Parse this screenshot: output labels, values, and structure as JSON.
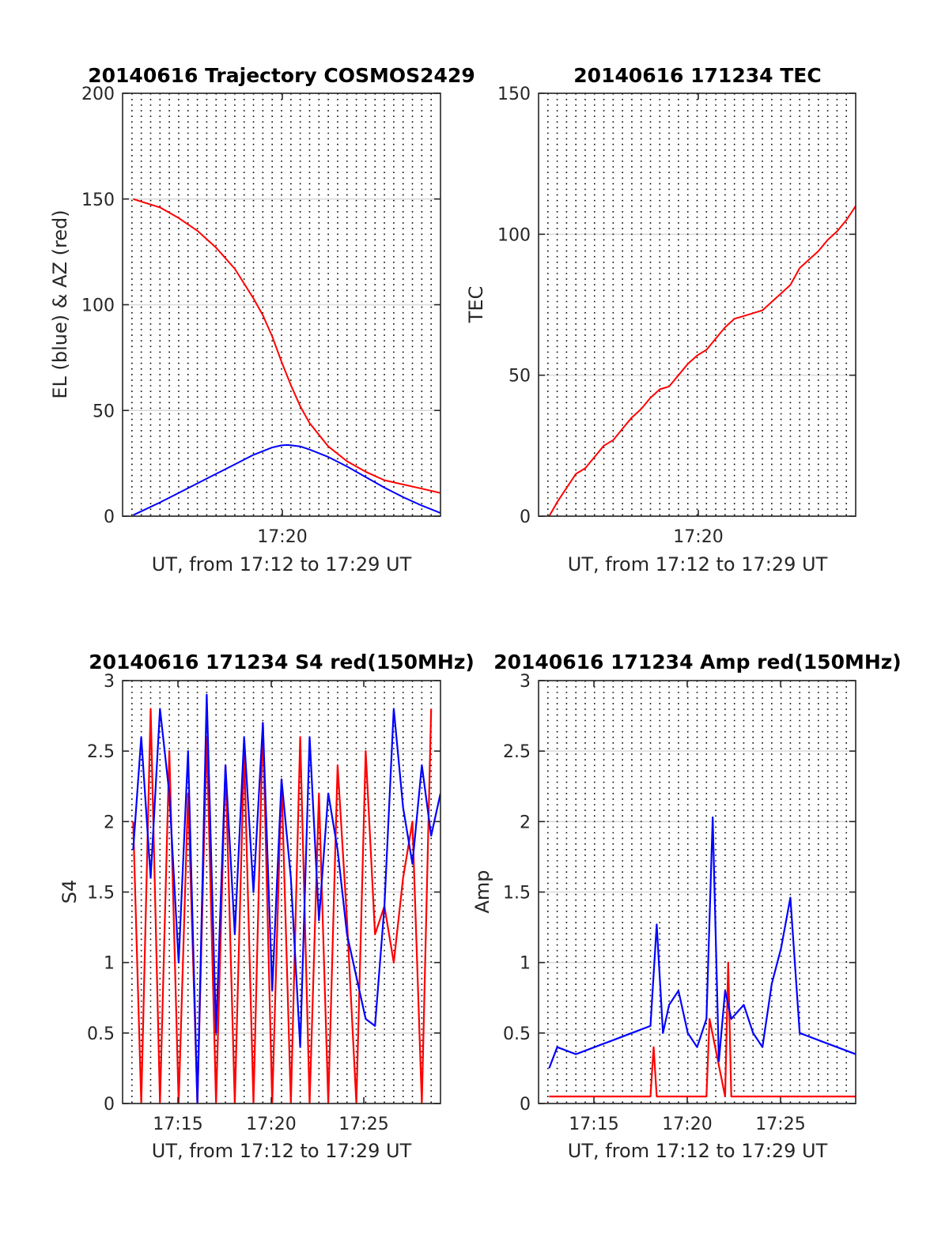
{
  "colors": {
    "red": "#ff0000",
    "blue": "#0000ff",
    "grid_dotted": "#000000",
    "grid_solid": "#d9d9d9",
    "axis": "#262626"
  },
  "chart_data": [
    {
      "id": "trajectory",
      "type": "line",
      "title": "20140616 Trajectory COSMOS2429",
      "xlabel": "UT, from 17:12 to 17:29 UT",
      "ylabel": "EL (blue) & AZ (red)",
      "xlim": [
        "17:12:00",
        "17:29:00"
      ],
      "ylim": [
        0,
        200
      ],
      "yticks": [
        "0",
        "50",
        "100",
        "150",
        "200"
      ],
      "xticks": [
        "17:20"
      ],
      "grid": "x dotted every 30 s, y solid",
      "series": [
        {
          "color": "#ff0000",
          "x": [
            "17:12:34",
            "17:14:00",
            "17:15:00",
            "17:16:00",
            "17:17:00",
            "17:18:00",
            "17:19:00",
            "17:19:30",
            "17:20:00",
            "17:20:30",
            "17:21:00",
            "17:21:30",
            "17:22:00",
            "17:23:00",
            "17:24:00",
            "17:25:00",
            "17:26:00",
            "17:27:00",
            "17:28:00",
            "17:29:00"
          ],
          "values": [
            150,
            146,
            141,
            135,
            127,
            117,
            103,
            95,
            85,
            73,
            62,
            52,
            44,
            33,
            26,
            21,
            17,
            15,
            13,
            11
          ]
        },
        {
          "color": "#0000ff",
          "x": [
            "17:12:34",
            "17:14:00",
            "17:15:00",
            "17:16:00",
            "17:17:00",
            "17:18:00",
            "17:19:00",
            "17:20:00",
            "17:20:30",
            "17:20:50",
            "17:21:30",
            "17:22:00",
            "17:23:00",
            "17:24:00",
            "17:25:00",
            "17:26:00",
            "17:27:00",
            "17:28:00",
            "17:29:00"
          ],
          "values": [
            0.5,
            6.5,
            11,
            15.5,
            20,
            24.5,
            29,
            32.5,
            33.5,
            33.7,
            33,
            31.5,
            28,
            23.5,
            18.5,
            13.5,
            9,
            5,
            1.5
          ]
        }
      ]
    },
    {
      "id": "tec",
      "type": "line",
      "title": "20140616 171234 TEC",
      "xlabel": "UT, from 17:12 to 17:29 UT",
      "ylabel": "TEC",
      "xlim": [
        "17:12:00",
        "17:29:00"
      ],
      "ylim": [
        0,
        150
      ],
      "yticks": [
        "0",
        "50",
        "100",
        "150"
      ],
      "xticks": [
        "17:20"
      ],
      "grid": "x dotted every 30 s, y solid",
      "series": [
        {
          "color": "#ff0000",
          "x": [
            "17:12:34",
            "17:13:00",
            "17:13:30",
            "17:14:00",
            "17:14:30",
            "17:15:00",
            "17:15:30",
            "17:16:00",
            "17:16:30",
            "17:17:00",
            "17:17:30",
            "17:18:00",
            "17:18:30",
            "17:19:00",
            "17:19:30",
            "17:20:00",
            "17:20:30",
            "17:21:00",
            "17:21:30",
            "17:22:00",
            "17:22:30",
            "17:23:00",
            "17:23:30",
            "17:24:00",
            "17:24:30",
            "17:25:00",
            "17:25:30",
            "17:26:00",
            "17:26:30",
            "17:27:00",
            "17:27:30",
            "17:28:00",
            "17:28:30",
            "17:29:00"
          ],
          "values": [
            0,
            5,
            10,
            15,
            17,
            21,
            25,
            27,
            31,
            35,
            38,
            42,
            45,
            46,
            50,
            54,
            57,
            59,
            63,
            67,
            70,
            71,
            72,
            73,
            76,
            79,
            82,
            88,
            91,
            94,
            98,
            101,
            105,
            110
          ]
        }
      ]
    },
    {
      "id": "s4",
      "type": "line",
      "title": "20140616 171234 S4 red(150MHz)",
      "xlabel": "UT, from 17:12 to 17:29 UT",
      "ylabel": "S4",
      "xlim": [
        "17:12:00",
        "17:29:00"
      ],
      "ylim": [
        0,
        3
      ],
      "yticks": [
        "0",
        "0.5",
        "1",
        "1.5",
        "2",
        "2.5",
        "3"
      ],
      "xticks": [
        "17:15",
        "17:20",
        "17:25"
      ],
      "grid": "x dotted every 30 s, y solid",
      "series": [
        {
          "color": "#ff0000",
          "x": [
            "17:12:34",
            "17:13:00",
            "17:13:30",
            "17:14:00",
            "17:14:30",
            "17:15:00",
            "17:15:30",
            "17:16:00",
            "17:16:30",
            "17:17:00",
            "17:17:30",
            "17:18:00",
            "17:18:30",
            "17:19:00",
            "17:19:30",
            "17:20:00",
            "17:20:30",
            "17:21:00",
            "17:21:30",
            "17:22:00",
            "17:22:30",
            "17:23:00",
            "17:23:30",
            "17:24:00",
            "17:24:30",
            "17:25:00",
            "17:25:30",
            "17:26:00",
            "17:26:30",
            "17:27:00",
            "17:27:30",
            "17:28:00",
            "17:28:30"
          ],
          "values": [
            2.0,
            0.0,
            2.8,
            0.0,
            2.5,
            0.0,
            2.2,
            0.0,
            2.6,
            0.0,
            2.4,
            0.0,
            2.5,
            0.0,
            2.7,
            0.0,
            2.3,
            0.0,
            2.6,
            0.0,
            2.2,
            0.0,
            2.4,
            1.3,
            0.0,
            2.5,
            1.2,
            1.4,
            1.0,
            1.6,
            2.0,
            0.0,
            2.8
          ]
        },
        {
          "color": "#0000ff",
          "x": [
            "17:12:34",
            "17:13:00",
            "17:13:30",
            "17:14:00",
            "17:14:30",
            "17:15:00",
            "17:15:30",
            "17:16:00",
            "17:16:30",
            "17:17:00",
            "17:17:30",
            "17:18:00",
            "17:18:30",
            "17:19:00",
            "17:19:30",
            "17:20:00",
            "17:20:30",
            "17:21:00",
            "17:21:30",
            "17:22:00",
            "17:22:30",
            "17:23:00",
            "17:23:30",
            "17:24:00",
            "17:24:30",
            "17:25:00",
            "17:25:30",
            "17:26:00",
            "17:26:30",
            "17:27:00",
            "17:27:30",
            "17:28:00",
            "17:28:30",
            "17:29:00"
          ],
          "values": [
            1.8,
            2.6,
            1.6,
            2.8,
            2.2,
            1.0,
            2.5,
            0.0,
            2.9,
            0.5,
            2.4,
            1.2,
            2.6,
            1.5,
            2.7,
            0.8,
            2.3,
            1.6,
            0.4,
            2.6,
            1.3,
            2.2,
            1.8,
            1.2,
            0.9,
            0.6,
            0.55,
            1.4,
            2.8,
            2.1,
            1.7,
            2.4,
            1.9,
            2.2
          ]
        }
      ]
    },
    {
      "id": "amp",
      "type": "line",
      "title": "20140616 171234 Amp red(150MHz)",
      "xlabel": "UT, from 17:12 to 17:29 UT",
      "ylabel": "Amp",
      "xlim": [
        "17:12:00",
        "17:29:00"
      ],
      "ylim": [
        0,
        3
      ],
      "yticks": [
        "0",
        "0.5",
        "1",
        "1.5",
        "2",
        "2.5",
        "3"
      ],
      "xticks": [
        "17:15",
        "17:20",
        "17:25"
      ],
      "grid": "x dotted every 30 s, y solid",
      "series": [
        {
          "color": "#ff0000",
          "x": [
            "17:12:34",
            "17:18:00",
            "17:18:10",
            "17:18:20",
            "17:21:00",
            "17:21:10",
            "17:22:00",
            "17:22:10",
            "17:22:20",
            "17:29:00"
          ],
          "values": [
            0.05,
            0.05,
            0.4,
            0.05,
            0.05,
            0.6,
            0.05,
            1.0,
            0.05,
            0.05
          ]
        },
        {
          "color": "#0000ff",
          "x": [
            "17:12:34",
            "17:13:00",
            "17:14:00",
            "17:15:00",
            "17:16:00",
            "17:17:00",
            "17:18:00",
            "17:18:20",
            "17:18:40",
            "17:19:00",
            "17:19:30",
            "17:20:00",
            "17:20:30",
            "17:21:00",
            "17:21:20",
            "17:21:40",
            "17:22:00",
            "17:22:20",
            "17:23:00",
            "17:23:30",
            "17:24:00",
            "17:24:30",
            "17:25:00",
            "17:25:30",
            "17:26:00",
            "17:27:00",
            "17:28:00",
            "17:29:00"
          ],
          "values": [
            0.25,
            0.4,
            0.35,
            0.4,
            0.45,
            0.5,
            0.55,
            1.27,
            0.5,
            0.7,
            0.8,
            0.5,
            0.4,
            0.6,
            2.03,
            0.3,
            0.8,
            0.6,
            0.7,
            0.5,
            0.4,
            0.85,
            1.1,
            1.46,
            0.5,
            0.45,
            0.4,
            0.35
          ]
        }
      ]
    }
  ]
}
